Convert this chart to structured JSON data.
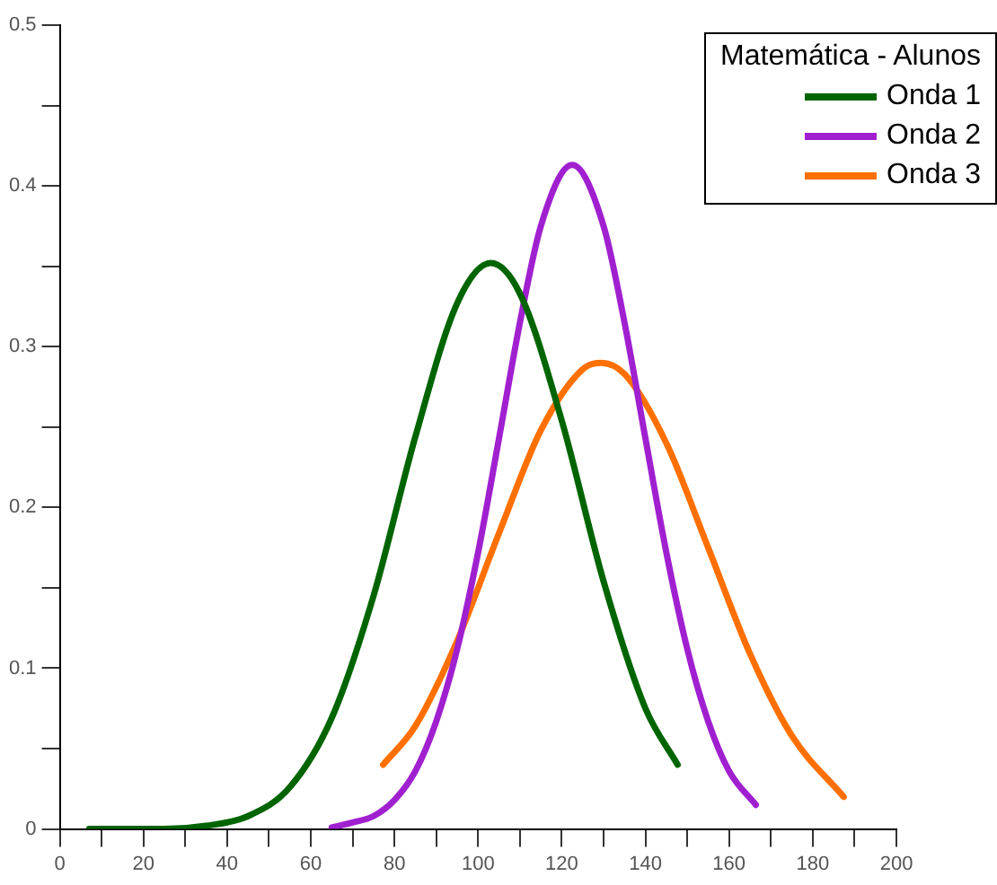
{
  "chart_data": {
    "type": "line",
    "legend_title": "Matemática - Alunos",
    "legend": "top right",
    "marker": "none",
    "line_style": "solid",
    "grid": false,
    "xlim": [
      0,
      200
    ],
    "xticks": [
      0,
      {
        "value": 10,
        "label": null
      },
      20,
      {
        "value": 30,
        "label": null
      },
      40,
      {
        "value": 50,
        "label": null
      },
      60,
      {
        "value": 70,
        "label": null
      },
      80,
      {
        "value": 90,
        "label": null
      },
      100,
      {
        "value": 110,
        "label": null
      },
      120,
      {
        "value": 130,
        "label": null
      },
      140,
      {
        "value": 150,
        "label": null
      },
      160,
      {
        "value": 170,
        "label": null
      },
      180,
      {
        "value": 190,
        "label": null
      },
      200
    ],
    "ylim": [
      0,
      0.5
    ],
    "yticks": [
      0,
      {
        "value": 0.05,
        "label": null
      },
      0.1,
      {
        "value": 0.15,
        "label": null
      },
      0.2,
      {
        "value": 0.25,
        "label": null
      },
      0.3,
      {
        "value": 0.35,
        "label": null
      },
      0.4,
      {
        "value": 0.45,
        "label": null
      },
      0.5
    ],
    "series": [
      {
        "name": "Onda 1",
        "color": "#006400",
        "x": [
          7,
          15,
          25,
          35,
          45,
          55,
          65,
          75,
          85,
          95,
          103,
          110,
          120,
          130,
          140,
          147.7
        ],
        "values": [
          0,
          0,
          0,
          0.002,
          0.008,
          0.026,
          0.069,
          0.145,
          0.244,
          0.327,
          0.352,
          0.333,
          0.254,
          0.154,
          0.075,
          0.04
        ]
      },
      {
        "name": "Onda 2",
        "color": "#a020d0",
        "x": [
          65,
          70,
          75,
          80,
          85,
          90,
          95,
          100,
          105,
          110,
          115,
          122.5,
          130,
          135,
          140,
          145,
          150,
          155,
          160,
          166.4
        ],
        "values": [
          0.001,
          0.004,
          0.008,
          0.018,
          0.036,
          0.067,
          0.112,
          0.172,
          0.243,
          0.315,
          0.375,
          0.413,
          0.375,
          0.315,
          0.243,
          0.172,
          0.112,
          0.067,
          0.036,
          0.015
        ]
      },
      {
        "name": "Onda 3",
        "color": "#ff7000",
        "x": [
          77.3,
          85,
          95,
          105,
          115,
          125,
          129.3,
          135,
          145,
          155,
          165,
          175,
          187.4
        ],
        "values": [
          0.04,
          0.064,
          0.117,
          0.184,
          0.248,
          0.286,
          0.29,
          0.283,
          0.24,
          0.175,
          0.109,
          0.058,
          0.02
        ]
      }
    ]
  }
}
